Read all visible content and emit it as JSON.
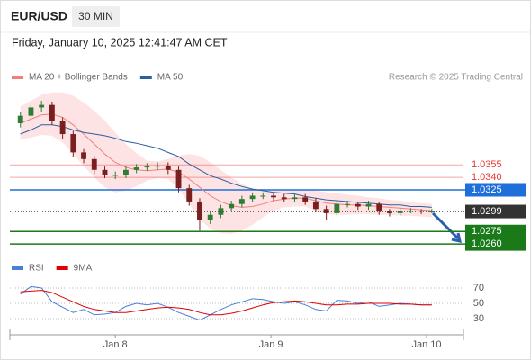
{
  "header": {
    "symbol": "EUR/USD",
    "timeframe": "30 MIN",
    "datetime": "Friday, January 10, 2025 12:41:47 AM CET"
  },
  "chart_data": [
    {
      "type": "candlestick",
      "credit": "Research © 2025 Trading Central",
      "x": [
        0,
        1,
        2,
        3,
        4,
        5,
        6,
        7,
        8,
        9,
        10,
        11,
        12,
        13,
        14,
        15,
        16,
        17,
        18,
        19,
        20,
        21,
        22,
        23,
        24,
        25,
        26,
        27,
        28,
        29,
        30,
        31,
        32,
        33,
        34,
        35,
        36,
        37,
        38,
        39
      ],
      "open": [
        1.0405,
        1.0414,
        1.0424,
        1.0427,
        1.0408,
        1.0392,
        1.037,
        1.0362,
        1.0349,
        1.0343,
        1.0343,
        1.0349,
        1.0352,
        1.0353,
        1.0354,
        1.0349,
        1.0327,
        1.0311,
        1.0289,
        1.0295,
        1.0303,
        1.0308,
        1.0314,
        1.0318,
        1.0318,
        1.0316,
        1.0314,
        1.0316,
        1.0311,
        1.0302,
        1.0297,
        1.0308,
        1.0308,
        1.0305,
        1.0308,
        1.0299,
        1.0297,
        1.03,
        1.03,
        1.0299
      ],
      "high": [
        1.0419,
        1.043,
        1.0432,
        1.0431,
        1.0412,
        1.0396,
        1.0374,
        1.0366,
        1.0353,
        1.0347,
        1.0353,
        1.0356,
        1.0357,
        1.0358,
        1.0358,
        1.0353,
        1.0331,
        1.0315,
        1.0299,
        1.0307,
        1.0312,
        1.0318,
        1.0322,
        1.0322,
        1.0321,
        1.032,
        1.032,
        1.032,
        1.0315,
        1.0306,
        1.0312,
        1.0312,
        1.0311,
        1.0312,
        1.0311,
        1.0302,
        1.0303,
        1.0303,
        1.0302,
        1.0302
      ],
      "low": [
        1.04,
        1.0409,
        1.0418,
        1.0403,
        1.0386,
        1.0364,
        1.0357,
        1.0344,
        1.0339,
        1.0338,
        1.0339,
        1.0345,
        1.0348,
        1.0349,
        1.0344,
        1.0322,
        1.0306,
        1.0276,
        1.0284,
        1.0291,
        1.0299,
        1.0304,
        1.031,
        1.0314,
        1.0312,
        1.031,
        1.031,
        1.0307,
        1.0298,
        1.0289,
        1.0293,
        1.0304,
        1.0301,
        1.0301,
        1.0295,
        1.0293,
        1.0294,
        1.0297,
        1.0296,
        1.0297
      ],
      "close": [
        1.0414,
        1.0424,
        1.0427,
        1.0408,
        1.0392,
        1.037,
        1.0362,
        1.0349,
        1.0343,
        1.0343,
        1.0349,
        1.0352,
        1.0353,
        1.0354,
        1.0349,
        1.0327,
        1.0311,
        1.0289,
        1.0295,
        1.0303,
        1.0308,
        1.0314,
        1.0318,
        1.0318,
        1.0316,
        1.0314,
        1.0316,
        1.0311,
        1.0302,
        1.0297,
        1.0308,
        1.0308,
        1.0305,
        1.0308,
        1.0299,
        1.0297,
        1.03,
        1.03,
        1.0299,
        1.0299
      ],
      "up_color": "#2e7d32",
      "down_color": "#7a1f1f",
      "xlim": [
        -1,
        42
      ],
      "ylim": [
        1.0245,
        1.0445
      ],
      "series": [
        {
          "name": "MA 20 + Bollinger Bands",
          "color": "#f08080",
          "band_color": "#fde3e3",
          "values": [
            1.0405,
            1.041,
            1.0415,
            1.0416,
            1.0412,
            1.0403,
            1.0392,
            1.038,
            1.0368,
            1.0358,
            1.0352,
            1.0349,
            1.0348,
            1.0349,
            1.035,
            1.0346,
            1.0338,
            1.0328,
            1.0318,
            1.0311,
            1.0306,
            1.0304,
            1.0305,
            1.0308,
            1.0312,
            1.0314,
            1.0315,
            1.0315,
            1.0312,
            1.0309,
            1.0308,
            1.0307,
            1.0307,
            1.0306,
            1.0305,
            1.0304,
            1.0303,
            1.0302,
            1.0301,
            1.03
          ],
          "upper": [
            1.0425,
            1.0432,
            1.0439,
            1.0442,
            1.0442,
            1.0438,
            1.043,
            1.042,
            1.0408,
            1.0394,
            1.038,
            1.0369,
            1.036,
            1.0359,
            1.0362,
            1.0366,
            1.0368,
            1.0366,
            1.0358,
            1.0349,
            1.034,
            1.0332,
            1.0327,
            1.0324,
            1.0324,
            1.0324,
            1.0325,
            1.0325,
            1.0324,
            1.0322,
            1.0321,
            1.0319,
            1.0318,
            1.0316,
            1.0315,
            1.0313,
            1.0312,
            1.031,
            1.0309,
            1.0308
          ],
          "lower": [
            1.0385,
            1.0388,
            1.0391,
            1.039,
            1.0382,
            1.0368,
            1.0354,
            1.034,
            1.0328,
            1.0322,
            1.0324,
            1.0329,
            1.0336,
            1.0339,
            1.0338,
            1.0326,
            1.0308,
            1.029,
            1.0278,
            1.0273,
            1.0272,
            1.0276,
            1.0283,
            1.0292,
            1.03,
            1.0304,
            1.0305,
            1.0305,
            1.03,
            1.0296,
            1.0295,
            1.0295,
            1.0296,
            1.0296,
            1.0295,
            1.0295,
            1.0294,
            1.0294,
            1.0293,
            1.0292
          ]
        },
        {
          "name": "MA 50",
          "color": "#2c5fa0",
          "values": [
            1.0392,
            1.0397,
            1.0403,
            1.0403,
            1.0401,
            1.0397,
            1.0394,
            1.0392,
            1.039,
            1.0387,
            1.0383,
            1.0381,
            1.0378,
            1.0375,
            1.037,
            1.0365,
            1.0356,
            1.0349,
            1.0342,
            1.0338,
            1.0333,
            1.0329,
            1.0326,
            1.0324,
            1.0322,
            1.0321,
            1.032,
            1.0317,
            1.0315,
            1.0313,
            1.0312,
            1.0311,
            1.031,
            1.0309,
            1.0308,
            1.0307,
            1.0307,
            1.0305,
            1.0305,
            1.0304
          ]
        }
      ],
      "levels": [
        {
          "value": 1.0355,
          "label": "1.0355",
          "color": "#e53935",
          "boxed": false,
          "line": "solid"
        },
        {
          "value": 1.034,
          "label": "1.0340",
          "color": "#e53935",
          "boxed": false,
          "line": "solid"
        },
        {
          "value": 1.0325,
          "label": "1.0325",
          "color": "#1e6fd9",
          "boxed": true,
          "line": "solid"
        },
        {
          "value": 1.0299,
          "label": "1.0299",
          "color": "#333333",
          "boxed": true,
          "line": "dotted"
        },
        {
          "value": 1.0275,
          "label": "1.0275",
          "color": "#1a7a1a",
          "boxed": true,
          "line": "solid"
        },
        {
          "value": 1.026,
          "label": "1.0260",
          "color": "#1a7a1a",
          "boxed": true,
          "line": "solid"
        }
      ]
    },
    {
      "type": "line",
      "x": [
        0,
        1,
        2,
        3,
        4,
        5,
        6,
        7,
        8,
        9,
        10,
        11,
        12,
        13,
        14,
        15,
        16,
        17,
        18,
        19,
        20,
        21,
        22,
        23,
        24,
        25,
        26,
        27,
        28,
        29,
        30,
        31,
        32,
        33,
        34,
        35,
        36,
        37,
        38,
        39
      ],
      "xlim": [
        -1,
        42
      ],
      "ylim": [
        20,
        80
      ],
      "yticks": [
        30,
        50,
        70
      ],
      "grid": true,
      "xticks": [
        {
          "value": 9,
          "label": "Jan 8"
        },
        {
          "value": 23.75,
          "label": "Jan 9"
        },
        {
          "value": 38.5,
          "label": "Jan 10"
        }
      ],
      "series": [
        {
          "name": "RSI",
          "color": "#4a7fd4",
          "values": [
            62,
            72,
            70,
            52,
            45,
            38,
            42,
            35,
            36,
            38,
            46,
            50,
            48,
            50,
            45,
            38,
            33,
            28,
            35,
            42,
            48,
            52,
            56,
            55,
            52,
            50,
            52,
            48,
            42,
            40,
            54,
            53,
            50,
            52,
            46,
            48,
            50,
            49,
            48,
            48
          ]
        },
        {
          "name": "9MA",
          "color": "#e00000",
          "values": [
            65,
            66,
            67,
            64,
            58,
            52,
            46,
            42,
            40,
            38,
            38,
            40,
            42,
            44,
            45,
            44,
            42,
            38,
            35,
            35,
            37,
            40,
            44,
            48,
            51,
            52,
            53,
            52,
            50,
            48,
            48,
            49,
            49,
            50,
            50,
            50,
            49,
            49,
            48,
            48
          ]
        }
      ]
    }
  ]
}
